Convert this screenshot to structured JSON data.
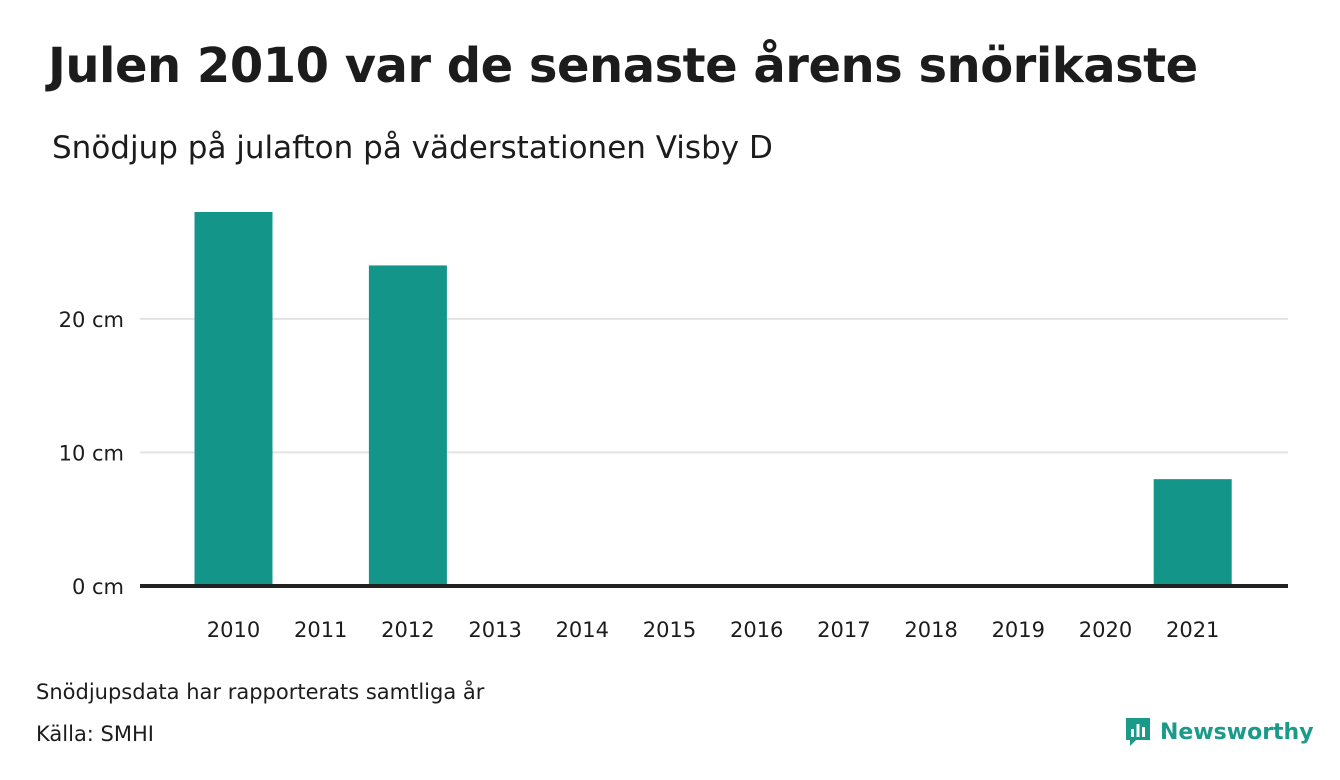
{
  "header": {
    "title": "Julen 2010 var de senaste årens snörikaste",
    "subtitle": "Snödjup på julafton på väderstationen Visby D"
  },
  "footer": {
    "note": "Snödjupsdata har rapporterats samtliga år",
    "source": "Källa: SMHI"
  },
  "logo": {
    "name": "Newsworthy",
    "icon": "newsworthy-logo-icon",
    "color": "#1a9b8a"
  },
  "colors": {
    "bar": "#14958a",
    "grid": "#e3e3e3",
    "baseline": "#222222"
  },
  "chart_data": {
    "type": "bar",
    "categories": [
      "2010",
      "2011",
      "2012",
      "2013",
      "2014",
      "2015",
      "2016",
      "2017",
      "2018",
      "2019",
      "2020",
      "2021"
    ],
    "values": [
      28,
      0,
      24,
      0,
      0,
      0,
      0,
      0,
      0,
      0,
      0,
      8
    ],
    "ylim": [
      0,
      28
    ],
    "yticks": [
      0,
      10,
      20
    ],
    "ytick_labels": [
      "0 cm",
      "10 cm",
      "20 cm"
    ],
    "grid": true,
    "title": "Julen 2010 var de senaste årens snörikaste",
    "subtitle": "Snödjup på julafton på väderstationen Visby D"
  }
}
